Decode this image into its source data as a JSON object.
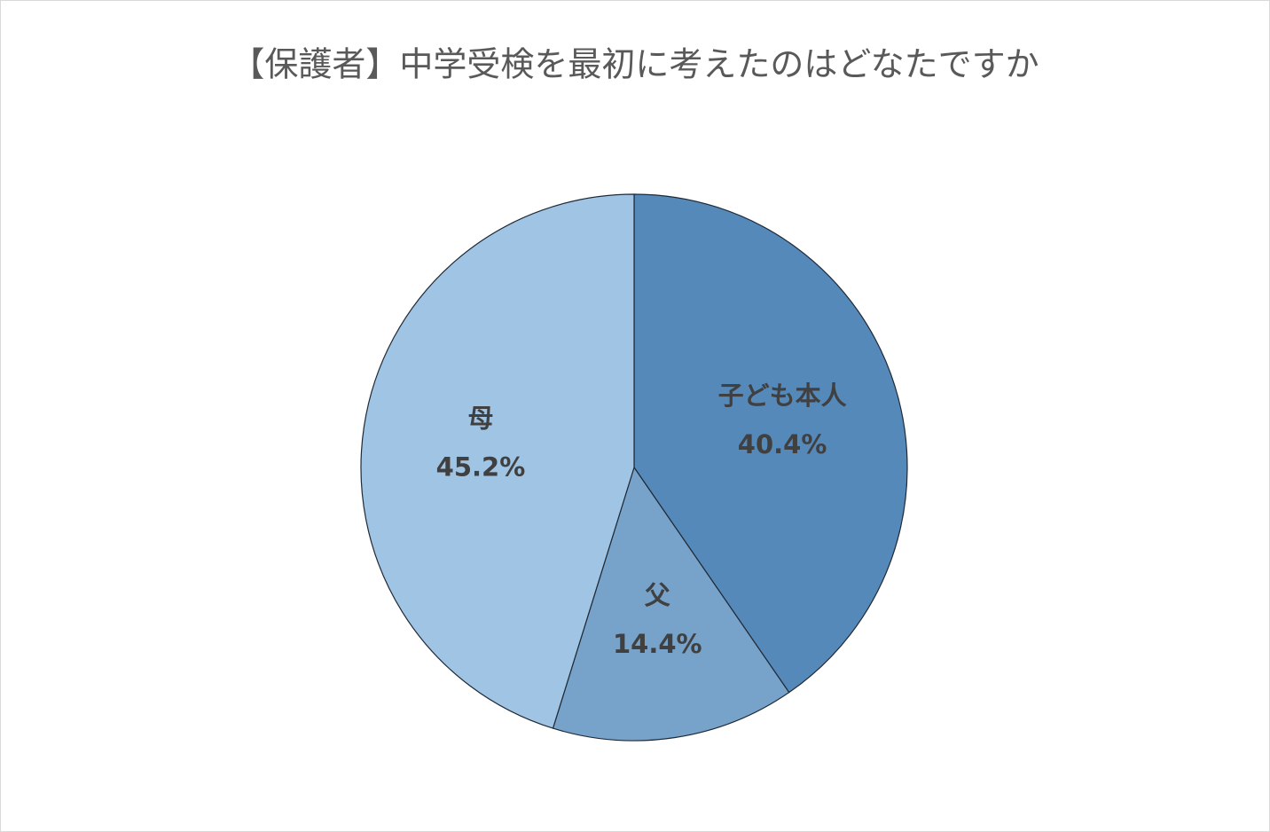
{
  "chart_data": {
    "type": "pie",
    "title": "【保護者】中学受検を最初に考えたのはどなたですか",
    "categories": [
      "子ども本人",
      "父",
      "母"
    ],
    "values": [
      40.4,
      14.4,
      45.2
    ],
    "value_labels": [
      "40.4%",
      "14.4%",
      "45.2%"
    ],
    "colors": [
      "#5589ba",
      "#77a3cb",
      "#a0c4e4"
    ]
  }
}
